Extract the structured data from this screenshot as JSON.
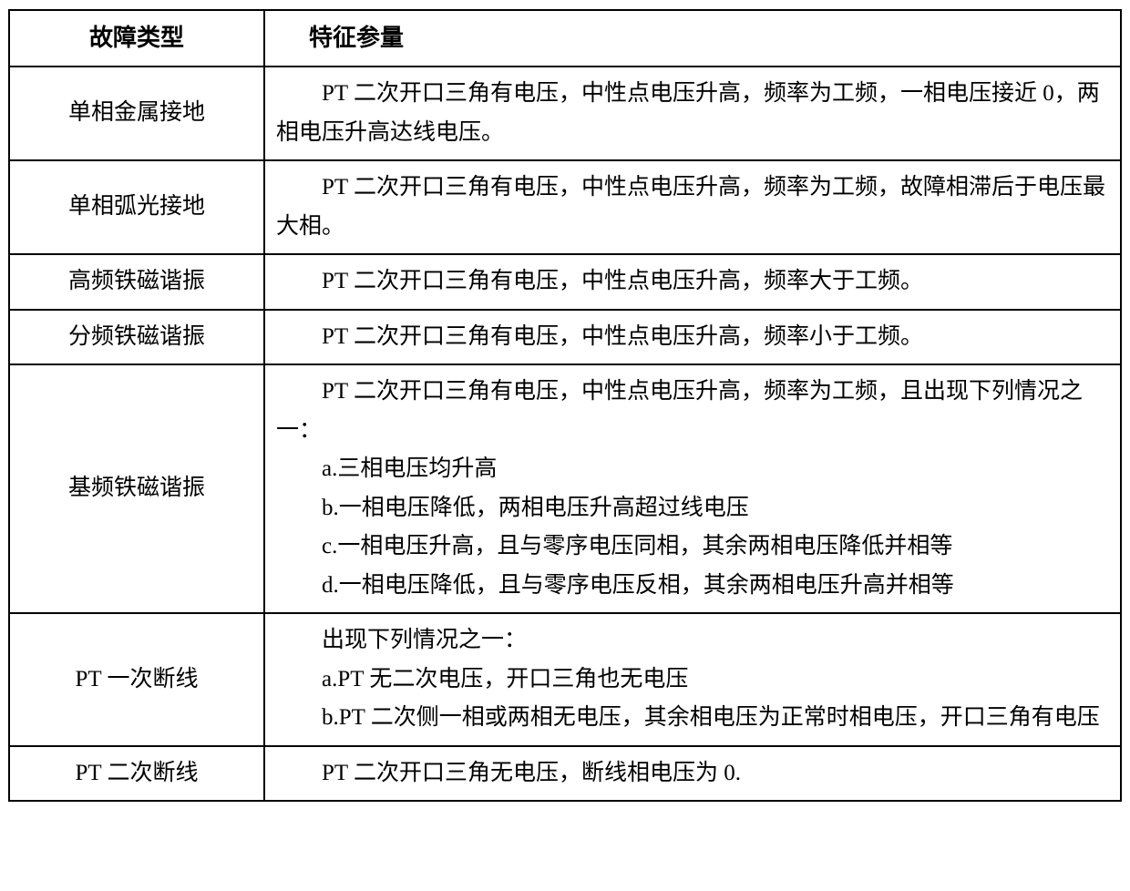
{
  "table": {
    "columns": [
      "故障类型",
      "特征参量"
    ],
    "col_widths": [
      "280px",
      "940px"
    ],
    "border_color": "#000000",
    "border_width": "2px",
    "background_color": "#ffffff",
    "text_color": "#000000",
    "header_fontsize": 26,
    "header_fontweight": "bold",
    "cell_fontsize": 25,
    "font_family": "SimSun",
    "line_height": 1.7,
    "text_indent_em": 2,
    "rows": [
      {
        "type": "单相金属接地",
        "param_lines": [
          "PT 二次开口三角有电压，中性点电压升高，频率为工频，一相电压接近 0，两相电压升高达线电压。"
        ]
      },
      {
        "type": "单相弧光接地",
        "param_lines": [
          "PT 二次开口三角有电压，中性点电压升高，频率为工频，故障相滞后于电压最大相。"
        ]
      },
      {
        "type": "高频铁磁谐振",
        "param_lines": [
          "PT 二次开口三角有电压，中性点电压升高，频率大于工频。"
        ]
      },
      {
        "type": "分频铁磁谐振",
        "param_lines": [
          "PT 二次开口三角有电压，中性点电压升高，频率小于工频。"
        ]
      },
      {
        "type": "基频铁磁谐振",
        "param_lines": [
          "PT 二次开口三角有电压，中性点电压升高，频率为工频，且出现下列情况之一：",
          "a.三相电压均升高",
          "b.一相电压降低，两相电压升高超过线电压",
          "c.一相电压升高，且与零序电压同相，其余两相电压降低并相等",
          "d.一相电压降低，且与零序电压反相，其余两相电压升高并相等"
        ]
      },
      {
        "type": "PT 一次断线",
        "param_lines": [
          "出现下列情况之一：",
          "a.PT 无二次电压，开口三角也无电压",
          "b.PT 二次侧一相或两相无电压，其余相电压为正常时相电压，开口三角有电压"
        ]
      },
      {
        "type": "PT 二次断线",
        "param_lines": [
          "PT 二次开口三角无电压，断线相电压为 0."
        ]
      }
    ]
  }
}
